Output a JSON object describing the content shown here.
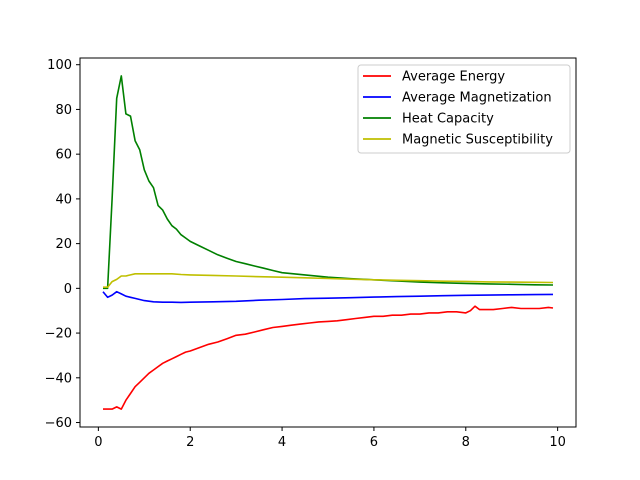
{
  "chart_data": {
    "type": "line",
    "title": "",
    "xlabel": "",
    "ylabel": "",
    "xlim": [
      -0.4,
      10.4
    ],
    "ylim": [
      -62,
      103
    ],
    "xticks": [
      0,
      2,
      4,
      6,
      8,
      10
    ],
    "yticks": [
      -60,
      -40,
      -20,
      0,
      20,
      40,
      60,
      80,
      100
    ],
    "grid": false,
    "legend_position": "top-right",
    "series": [
      {
        "name": "Average Energy",
        "color": "#ff0000",
        "x": [
          0.1,
          0.2,
          0.3,
          0.4,
          0.5,
          0.6,
          0.7,
          0.8,
          0.9,
          1.0,
          1.1,
          1.2,
          1.3,
          1.4,
          1.5,
          1.6,
          1.7,
          1.8,
          1.9,
          2.0,
          2.2,
          2.4,
          2.6,
          2.8,
          3.0,
          3.2,
          3.4,
          3.6,
          3.8,
          4.0,
          4.2,
          4.4,
          4.6,
          4.8,
          5.0,
          5.2,
          5.4,
          5.6,
          5.8,
          6.0,
          6.2,
          6.4,
          6.6,
          6.8,
          7.0,
          7.2,
          7.4,
          7.6,
          7.8,
          8.0,
          8.1,
          8.2,
          8.3,
          8.4,
          8.6,
          8.8,
          9.0,
          9.2,
          9.4,
          9.6,
          9.8,
          9.9
        ],
        "values": [
          -54,
          -54,
          -54,
          -53,
          -54,
          -50,
          -47,
          -44,
          -42,
          -40,
          -38,
          -36.5,
          -35,
          -33.5,
          -32.5,
          -31.5,
          -30.5,
          -29.5,
          -28.5,
          -28,
          -26.5,
          -25,
          -24,
          -22.5,
          -21,
          -20.5,
          -19.5,
          -18.5,
          -17.5,
          -17,
          -16.5,
          -16,
          -15.5,
          -15,
          -14.8,
          -14.5,
          -14,
          -13.5,
          -13,
          -12.5,
          -12.5,
          -12,
          -12,
          -11.5,
          -11.5,
          -11,
          -11,
          -10.5,
          -10.5,
          -11,
          -10,
          -8,
          -9.5,
          -9.5,
          -9.5,
          -9,
          -8.5,
          -9,
          -9,
          -9,
          -8.5,
          -8.8
        ]
      },
      {
        "name": "Average Magnetization",
        "color": "#0000ff",
        "x": [
          0.1,
          0.2,
          0.3,
          0.4,
          0.5,
          0.6,
          0.7,
          0.8,
          0.9,
          1.0,
          1.2,
          1.4,
          1.6,
          1.8,
          2.0,
          2.5,
          3.0,
          3.5,
          4.0,
          4.5,
          5.0,
          5.5,
          6.0,
          6.5,
          7.0,
          7.5,
          8.0,
          8.5,
          9.0,
          9.5,
          9.9
        ],
        "values": [
          -1.5,
          -4,
          -3,
          -1.5,
          -2.5,
          -3.5,
          -4,
          -4.5,
          -5,
          -5.5,
          -6,
          -6.2,
          -6.2,
          -6.3,
          -6.2,
          -6,
          -5.8,
          -5.3,
          -5,
          -4.6,
          -4.4,
          -4.2,
          -3.9,
          -3.7,
          -3.5,
          -3.3,
          -3.1,
          -3,
          -2.9,
          -2.8,
          -2.7
        ]
      },
      {
        "name": "Heat Capacity",
        "color": "#008000",
        "x": [
          0.1,
          0.2,
          0.3,
          0.4,
          0.5,
          0.6,
          0.7,
          0.8,
          0.9,
          1.0,
          1.1,
          1.2,
          1.3,
          1.4,
          1.5,
          1.6,
          1.7,
          1.8,
          1.9,
          2.0,
          2.2,
          2.4,
          2.6,
          2.8,
          3.0,
          3.2,
          3.4,
          3.6,
          3.8,
          4.0,
          4.5,
          5.0,
          5.5,
          6.0,
          6.5,
          7.0,
          7.5,
          8.0,
          8.5,
          9.0,
          9.5,
          9.9
        ],
        "values": [
          0,
          0,
          40,
          85,
          95,
          78,
          77,
          66,
          62,
          53,
          48,
          45,
          37,
          35,
          31,
          28,
          26.5,
          24,
          22.5,
          21,
          19,
          17,
          15,
          13.5,
          12,
          11,
          10,
          9,
          8,
          7,
          6,
          5,
          4.3,
          3.8,
          3.3,
          2.8,
          2.5,
          2.2,
          2,
          1.8,
          1.6,
          1.5
        ]
      },
      {
        "name": "Magnetic Susceptibility",
        "color": "#bfbf00",
        "x": [
          0.1,
          0.2,
          0.3,
          0.4,
          0.5,
          0.6,
          0.7,
          0.8,
          0.9,
          1.0,
          1.2,
          1.4,
          1.6,
          1.8,
          2.0,
          2.5,
          3.0,
          3.5,
          4.0,
          4.5,
          5.0,
          5.5,
          6.0,
          6.5,
          7.0,
          7.5,
          8.0,
          8.5,
          9.0,
          9.5,
          9.9
        ],
        "values": [
          0.5,
          0.5,
          3,
          4,
          5.5,
          5.5,
          6,
          6.5,
          6.5,
          6.5,
          6.5,
          6.5,
          6.5,
          6.2,
          6,
          5.8,
          5.5,
          5.2,
          5,
          4.7,
          4.4,
          4.1,
          3.8,
          3.6,
          3.4,
          3.2,
          3.1,
          2.9,
          2.8,
          2.7,
          2.6
        ]
      }
    ]
  }
}
